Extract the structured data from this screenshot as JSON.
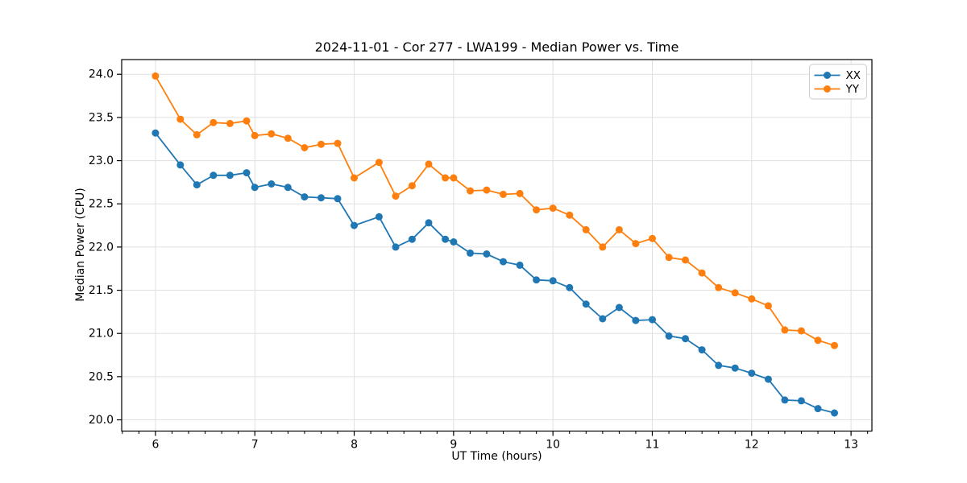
{
  "figure": {
    "title": "2024-11-01 - Cor 277 - LWA199 - Median Power vs. Time",
    "xlabel": "UT Time (hours)",
    "ylabel": "Median Power (CPU)"
  },
  "legend": {
    "entries": [
      "XX",
      "YY"
    ]
  },
  "chart_data": {
    "type": "line",
    "title": "2024-11-01 - Cor 277 - LWA199 - Median Power vs. Time",
    "xlabel": "UT Time (hours)",
    "ylabel": "Median Power (CPU)",
    "xlim": [
      5.66,
      13.21
    ],
    "ylim": [
      19.87,
      24.17
    ],
    "x_ticks": [
      6,
      7,
      8,
      9,
      10,
      11,
      12,
      13
    ],
    "y_ticks": [
      20.0,
      20.5,
      21.0,
      21.5,
      22.0,
      22.5,
      23.0,
      23.5,
      24.0
    ],
    "x_minor_tick_step": 0.16667,
    "grid": true,
    "legend_position": "upper right",
    "background": "#ffffff",
    "grid_color": "#e0e0e0",
    "x": [
      6.0,
      6.25,
      6.417,
      6.583,
      6.75,
      6.917,
      7.0,
      7.167,
      7.333,
      7.5,
      7.667,
      7.833,
      8.0,
      8.25,
      8.417,
      8.583,
      8.75,
      8.917,
      9.0,
      9.167,
      9.333,
      9.5,
      9.667,
      9.833,
      10.0,
      10.167,
      10.333,
      10.5,
      10.667,
      10.833,
      11.0,
      11.167,
      11.333,
      11.5,
      11.667,
      11.833,
      12.0,
      12.167,
      12.333,
      12.5,
      12.667,
      12.833
    ],
    "series": [
      {
        "name": "XX",
        "color": "#1f77b4",
        "values": [
          23.32,
          22.95,
          22.72,
          22.83,
          22.83,
          22.86,
          22.69,
          22.73,
          22.69,
          22.58,
          22.57,
          22.56,
          22.25,
          22.35,
          22.0,
          22.09,
          22.28,
          22.09,
          22.06,
          21.93,
          21.92,
          21.83,
          21.79,
          21.62,
          21.61,
          21.53,
          21.34,
          21.17,
          21.3,
          21.15,
          21.16,
          20.97,
          20.94,
          20.81,
          20.63,
          20.6,
          20.54,
          20.47,
          20.23,
          20.22,
          20.13,
          20.08
        ]
      },
      {
        "name": "YY",
        "color": "#ff7f0e",
        "values": [
          23.98,
          23.48,
          23.3,
          23.44,
          23.43,
          23.46,
          23.29,
          23.31,
          23.26,
          23.15,
          23.19,
          23.2,
          22.8,
          22.98,
          22.59,
          22.71,
          22.96,
          22.8,
          22.8,
          22.65,
          22.66,
          22.61,
          22.62,
          22.43,
          22.45,
          22.37,
          22.2,
          22.0,
          22.2,
          22.04,
          22.1,
          21.88,
          21.85,
          21.7,
          21.53,
          21.47,
          21.4,
          21.32,
          21.04,
          21.03,
          20.92,
          20.86
        ]
      }
    ]
  }
}
